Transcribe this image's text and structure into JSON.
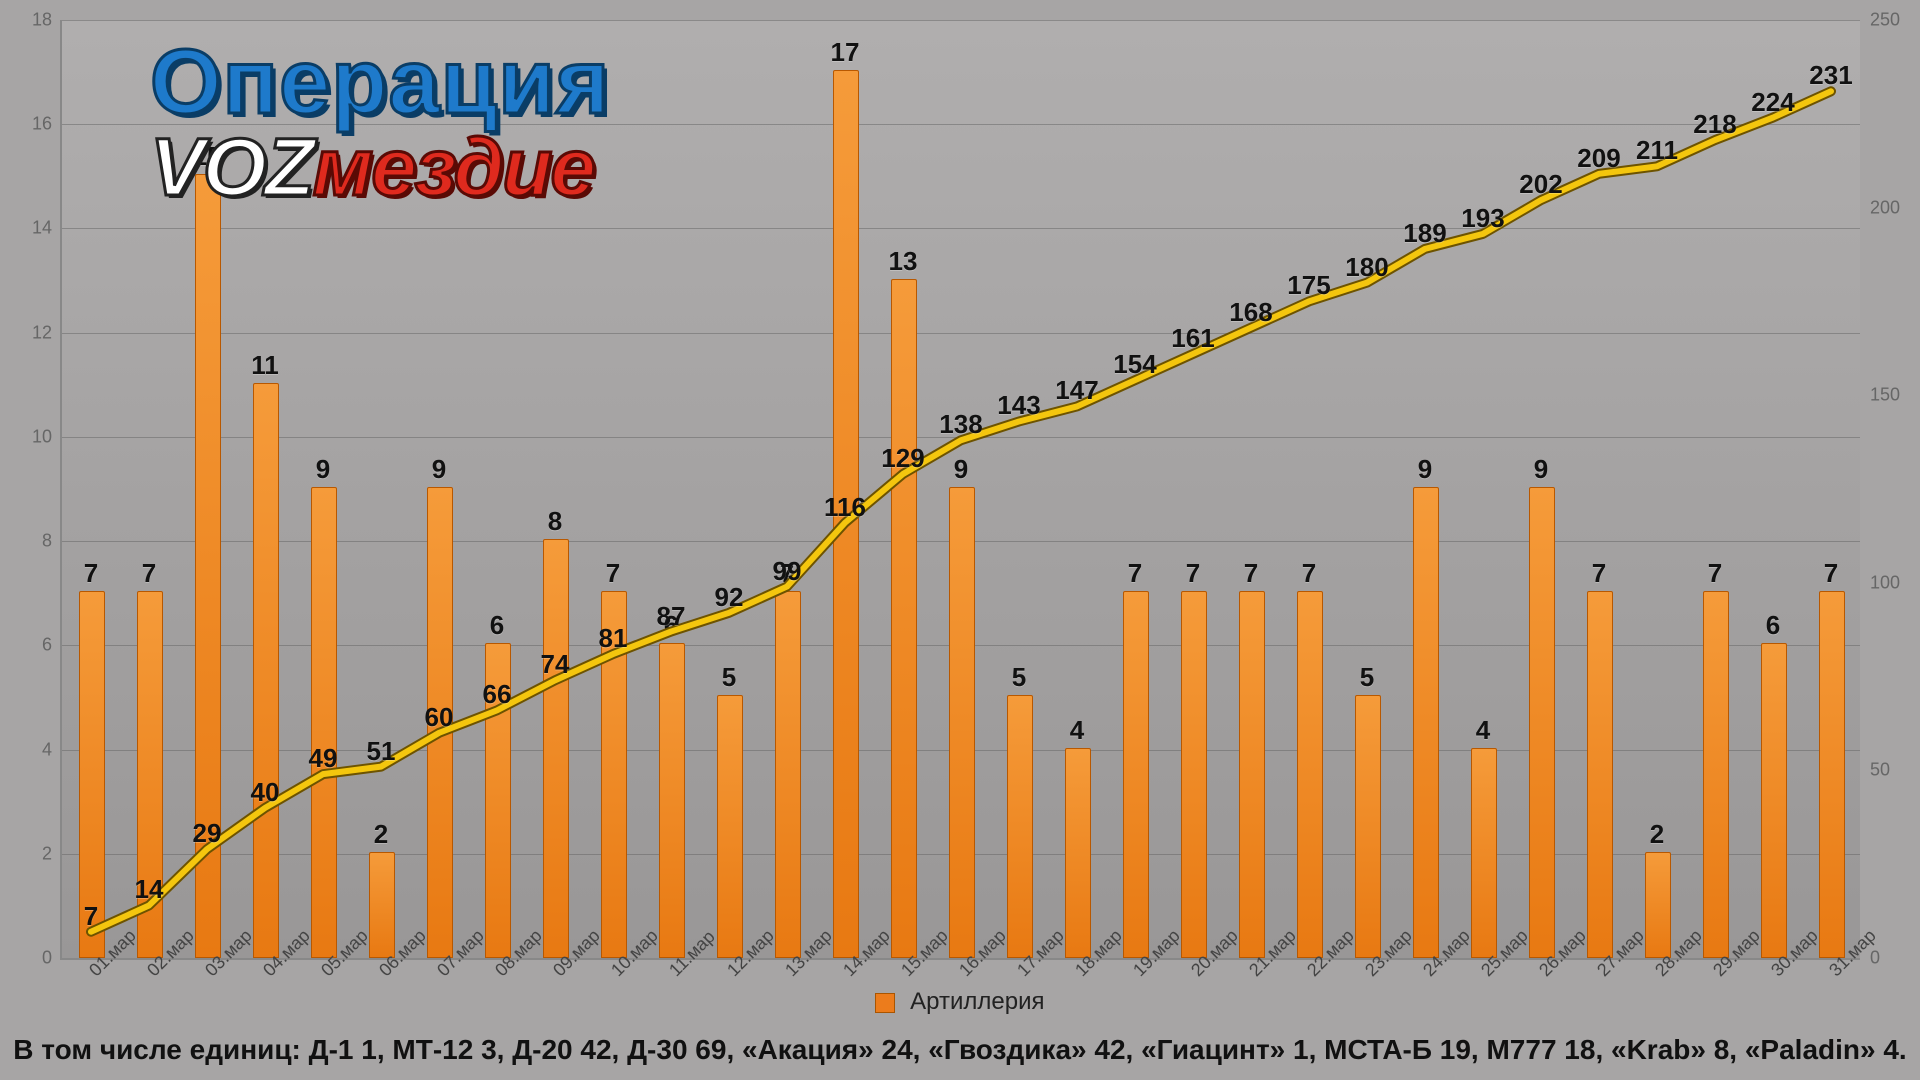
{
  "chart": {
    "type": "bar+line",
    "background_gradient": [
      "#b0aeae",
      "#999797"
    ],
    "bar_color": "#ec7c1c",
    "bar_border": "#b85800",
    "line_color": "#f4c60e",
    "line_outline": "#6d5300",
    "line_width": 6,
    "grid_color": "rgba(100,100,100,0.5)",
    "label_fontsize": 26,
    "tick_fontsize": 18,
    "y_left": {
      "min": 0,
      "max": 18,
      "step": 2
    },
    "y_right": {
      "min": 0,
      "max": 250,
      "step": 50
    },
    "categories": [
      "01.мар",
      "02.мар",
      "03.мар",
      "04.мар",
      "05.мар",
      "06.мар",
      "07.мар",
      "08.мар",
      "09.мар",
      "10.мар",
      "11.мар",
      "12.мар",
      "13.мар",
      "14.мар",
      "15.мар",
      "16.мар",
      "17.мар",
      "18.мар",
      "19.мар",
      "20.мар",
      "21.мар",
      "22.мар",
      "23.мар",
      "24.мар",
      "25.мар",
      "26.мар",
      "27.мар",
      "28.мар",
      "29.мар",
      "30.мар",
      "31.мар"
    ],
    "bar_values": [
      7,
      7,
      15,
      11,
      9,
      2,
      9,
      6,
      8,
      7,
      6,
      5,
      7,
      17,
      13,
      9,
      5,
      4,
      7,
      7,
      7,
      7,
      5,
      9,
      4,
      9,
      7,
      2,
      7,
      6,
      7
    ],
    "cum_values": [
      7,
      14,
      29,
      40,
      49,
      51,
      60,
      66,
      74,
      81,
      87,
      92,
      99,
      116,
      129,
      138,
      143,
      147,
      154,
      161,
      168,
      175,
      180,
      189,
      193,
      202,
      209,
      211,
      218,
      224,
      231
    ],
    "legend_label": "Артиллерия"
  },
  "logo": {
    "top": "Операция",
    "bottom_left": "VOZ",
    "bottom_right": "мездие"
  },
  "footer": "В том числе единиц: Д-1 1, МТ-12 3, Д-20 42, Д-30 69, «Акация» 24, «Гвоздика» 42, «Гиацинт» 1, МСТА-Б 19, М777 18, «Krab» 8, «Paladin» 4."
}
